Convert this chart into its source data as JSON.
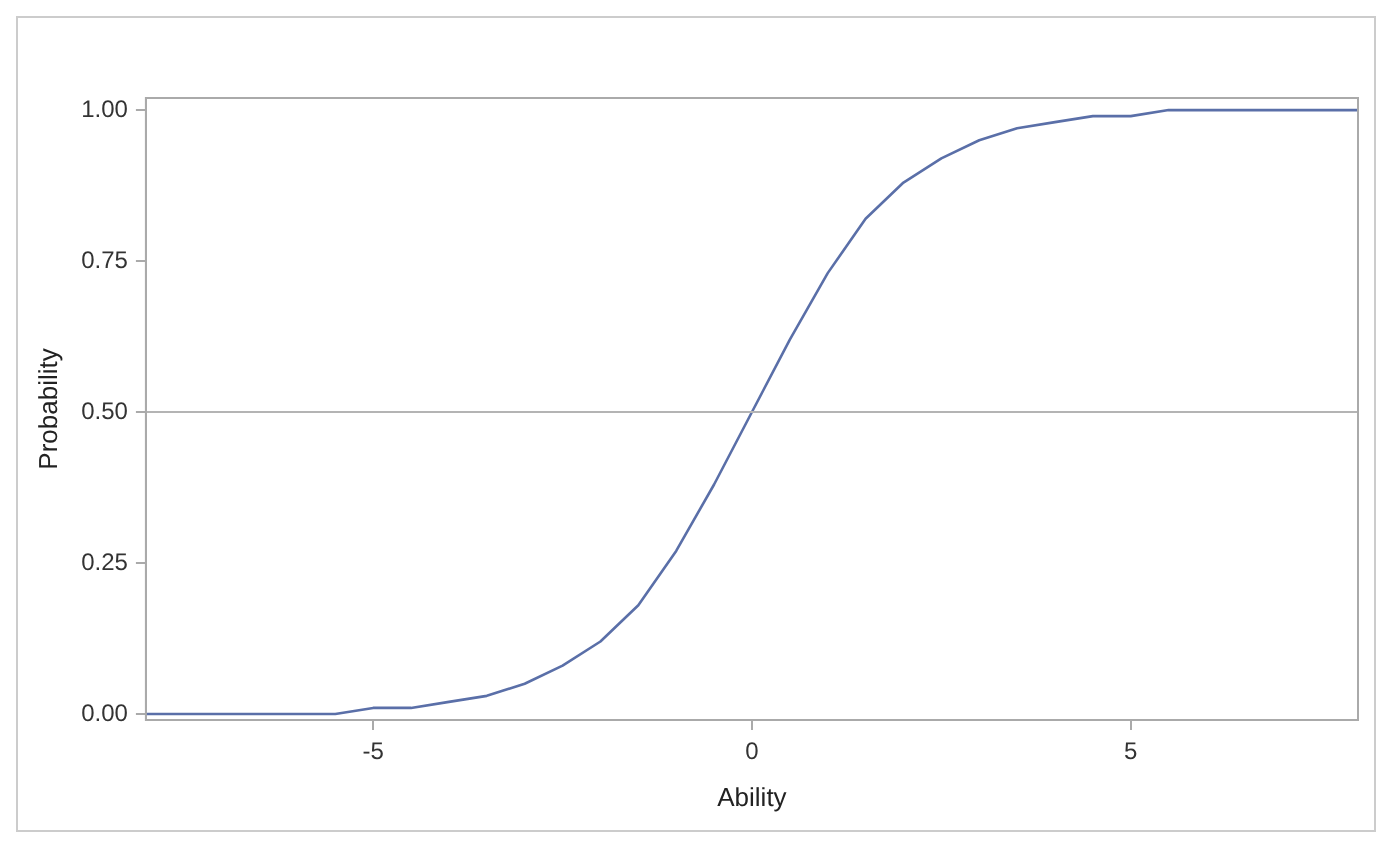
{
  "chart_data": {
    "type": "line",
    "xlabel": "Ability",
    "ylabel": "Probability",
    "x": [
      -8,
      -7.5,
      -7,
      -6.5,
      -6,
      -5.5,
      -5,
      -4.5,
      -4,
      -3.5,
      -3,
      -2.5,
      -2,
      -1.5,
      -1,
      -0.5,
      0,
      0.5,
      1,
      1.5,
      2,
      2.5,
      3,
      3.5,
      4,
      4.5,
      5,
      5.5,
      6,
      6.5,
      7,
      7.5,
      8
    ],
    "series": [
      {
        "color": "#5a6fa8",
        "values": [
          0,
          0,
          0,
          0,
          0,
          0,
          0.01,
          0.01,
          0.02,
          0.03,
          0.05,
          0.08,
          0.12,
          0.18,
          0.27,
          0.38,
          0.5,
          0.62,
          0.73,
          0.82,
          0.88,
          0.92,
          0.95,
          0.97,
          0.98,
          0.99,
          0.99,
          1,
          1,
          1,
          1,
          1,
          1
        ]
      }
    ],
    "xlim": [
      -8,
      8
    ],
    "xticks": [
      -5,
      0,
      5
    ],
    "ylim": [
      -0.01,
      1.02
    ],
    "yticks": [
      {
        "value": 0,
        "label": "0.00"
      },
      {
        "value": 0.25,
        "label": "0.25"
      },
      {
        "value": 0.5,
        "label": "0.50"
      },
      {
        "value": 0.75,
        "label": "0.75"
      },
      {
        "value": 1,
        "label": "1.00"
      }
    ],
    "ref_lines": [
      {
        "axis": "y",
        "value": 0.5,
        "color": "#b4b4b4"
      }
    ],
    "grid": false,
    "legend": false,
    "marker": "none",
    "line_style": "solid"
  }
}
